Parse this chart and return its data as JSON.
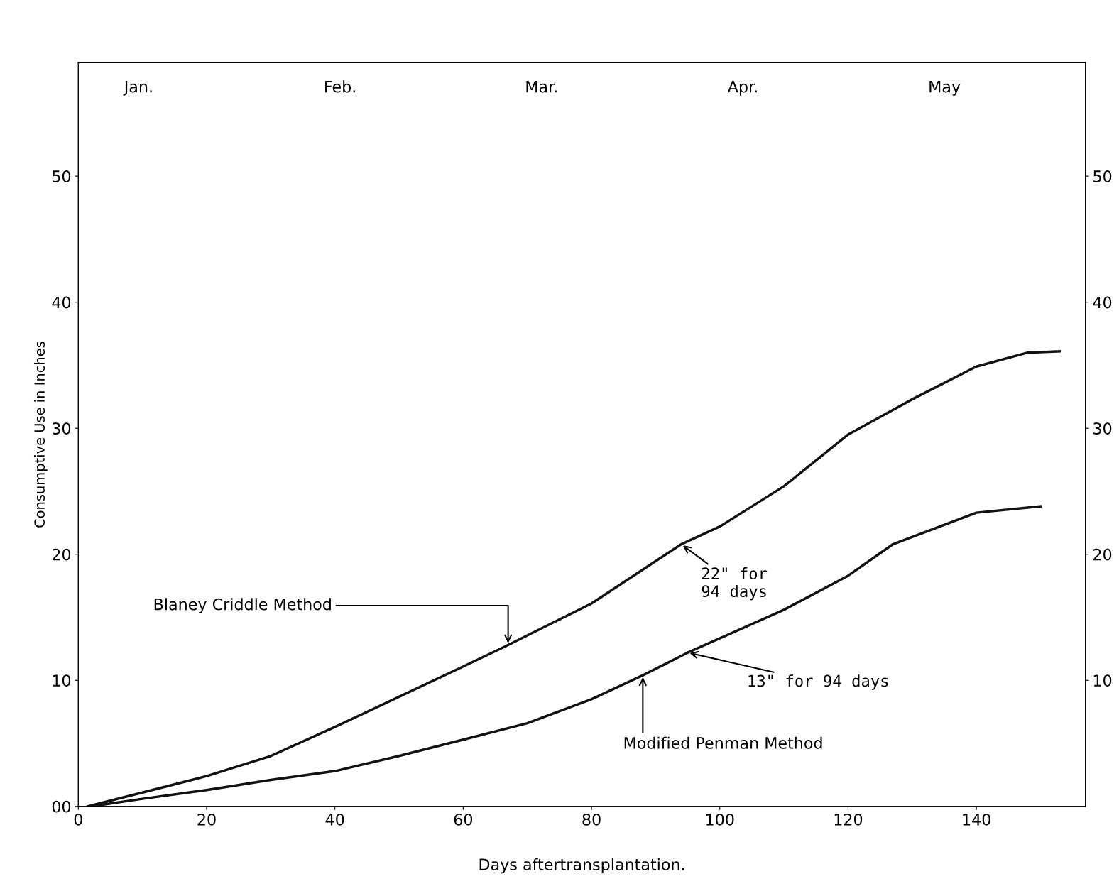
{
  "chart_data": {
    "type": "line",
    "xlabel": "Days aftertransplantation.",
    "ylabel": "Consumptive Use in Inches",
    "xlim": [
      0,
      157
    ],
    "ylim": [
      0,
      59
    ],
    "xticks": [
      {
        "value": 0,
        "label": "0"
      },
      20,
      40,
      60,
      80,
      100,
      120,
      140
    ],
    "yticks": [
      {
        "value": 0,
        "label": "00"
      },
      10,
      20,
      30,
      40,
      50
    ],
    "y2lim": [
      0,
      59
    ],
    "y2ticks": [
      10,
      20,
      30,
      40,
      50
    ],
    "grid": false,
    "marker": "none",
    "line_style": "solid",
    "series": [
      {
        "color": "#111111",
        "x": [
          1.5,
          10,
          20,
          30,
          40,
          50,
          60,
          67,
          80,
          94,
          100,
          110,
          120,
          130,
          140,
          148,
          153
        ],
        "values": [
          0,
          1.1,
          2.4,
          4.0,
          6.3,
          8.7,
          11.1,
          12.8,
          16.1,
          20.8,
          22.2,
          25.4,
          29.5,
          32.3,
          34.9,
          36.0,
          36.1
        ]
      },
      {
        "color": "#111111",
        "x": [
          2,
          10,
          20,
          30,
          40,
          50,
          60,
          70,
          80,
          88,
          95,
          110,
          120,
          127,
          140,
          150
        ],
        "values": [
          0,
          0.6,
          1.3,
          2.1,
          2.8,
          4.0,
          5.3,
          6.6,
          8.5,
          10.4,
          12.2,
          15.6,
          18.3,
          20.8,
          23.3,
          23.8
        ]
      }
    ],
    "annotations": [
      {
        "text": "Blaney Criddle Method",
        "x": 67,
        "y": 12.8
      },
      {
        "text": "22\" for\n94 days",
        "x": 94,
        "y": 20.8
      },
      {
        "text": "13\" for 94 days",
        "x": 95,
        "y": 12.2
      },
      {
        "text": "Modified Penman Method",
        "x": 88,
        "y": 10.4
      },
      "Jan.",
      "Feb.",
      "Mar.",
      "Apr.",
      "May"
    ]
  }
}
